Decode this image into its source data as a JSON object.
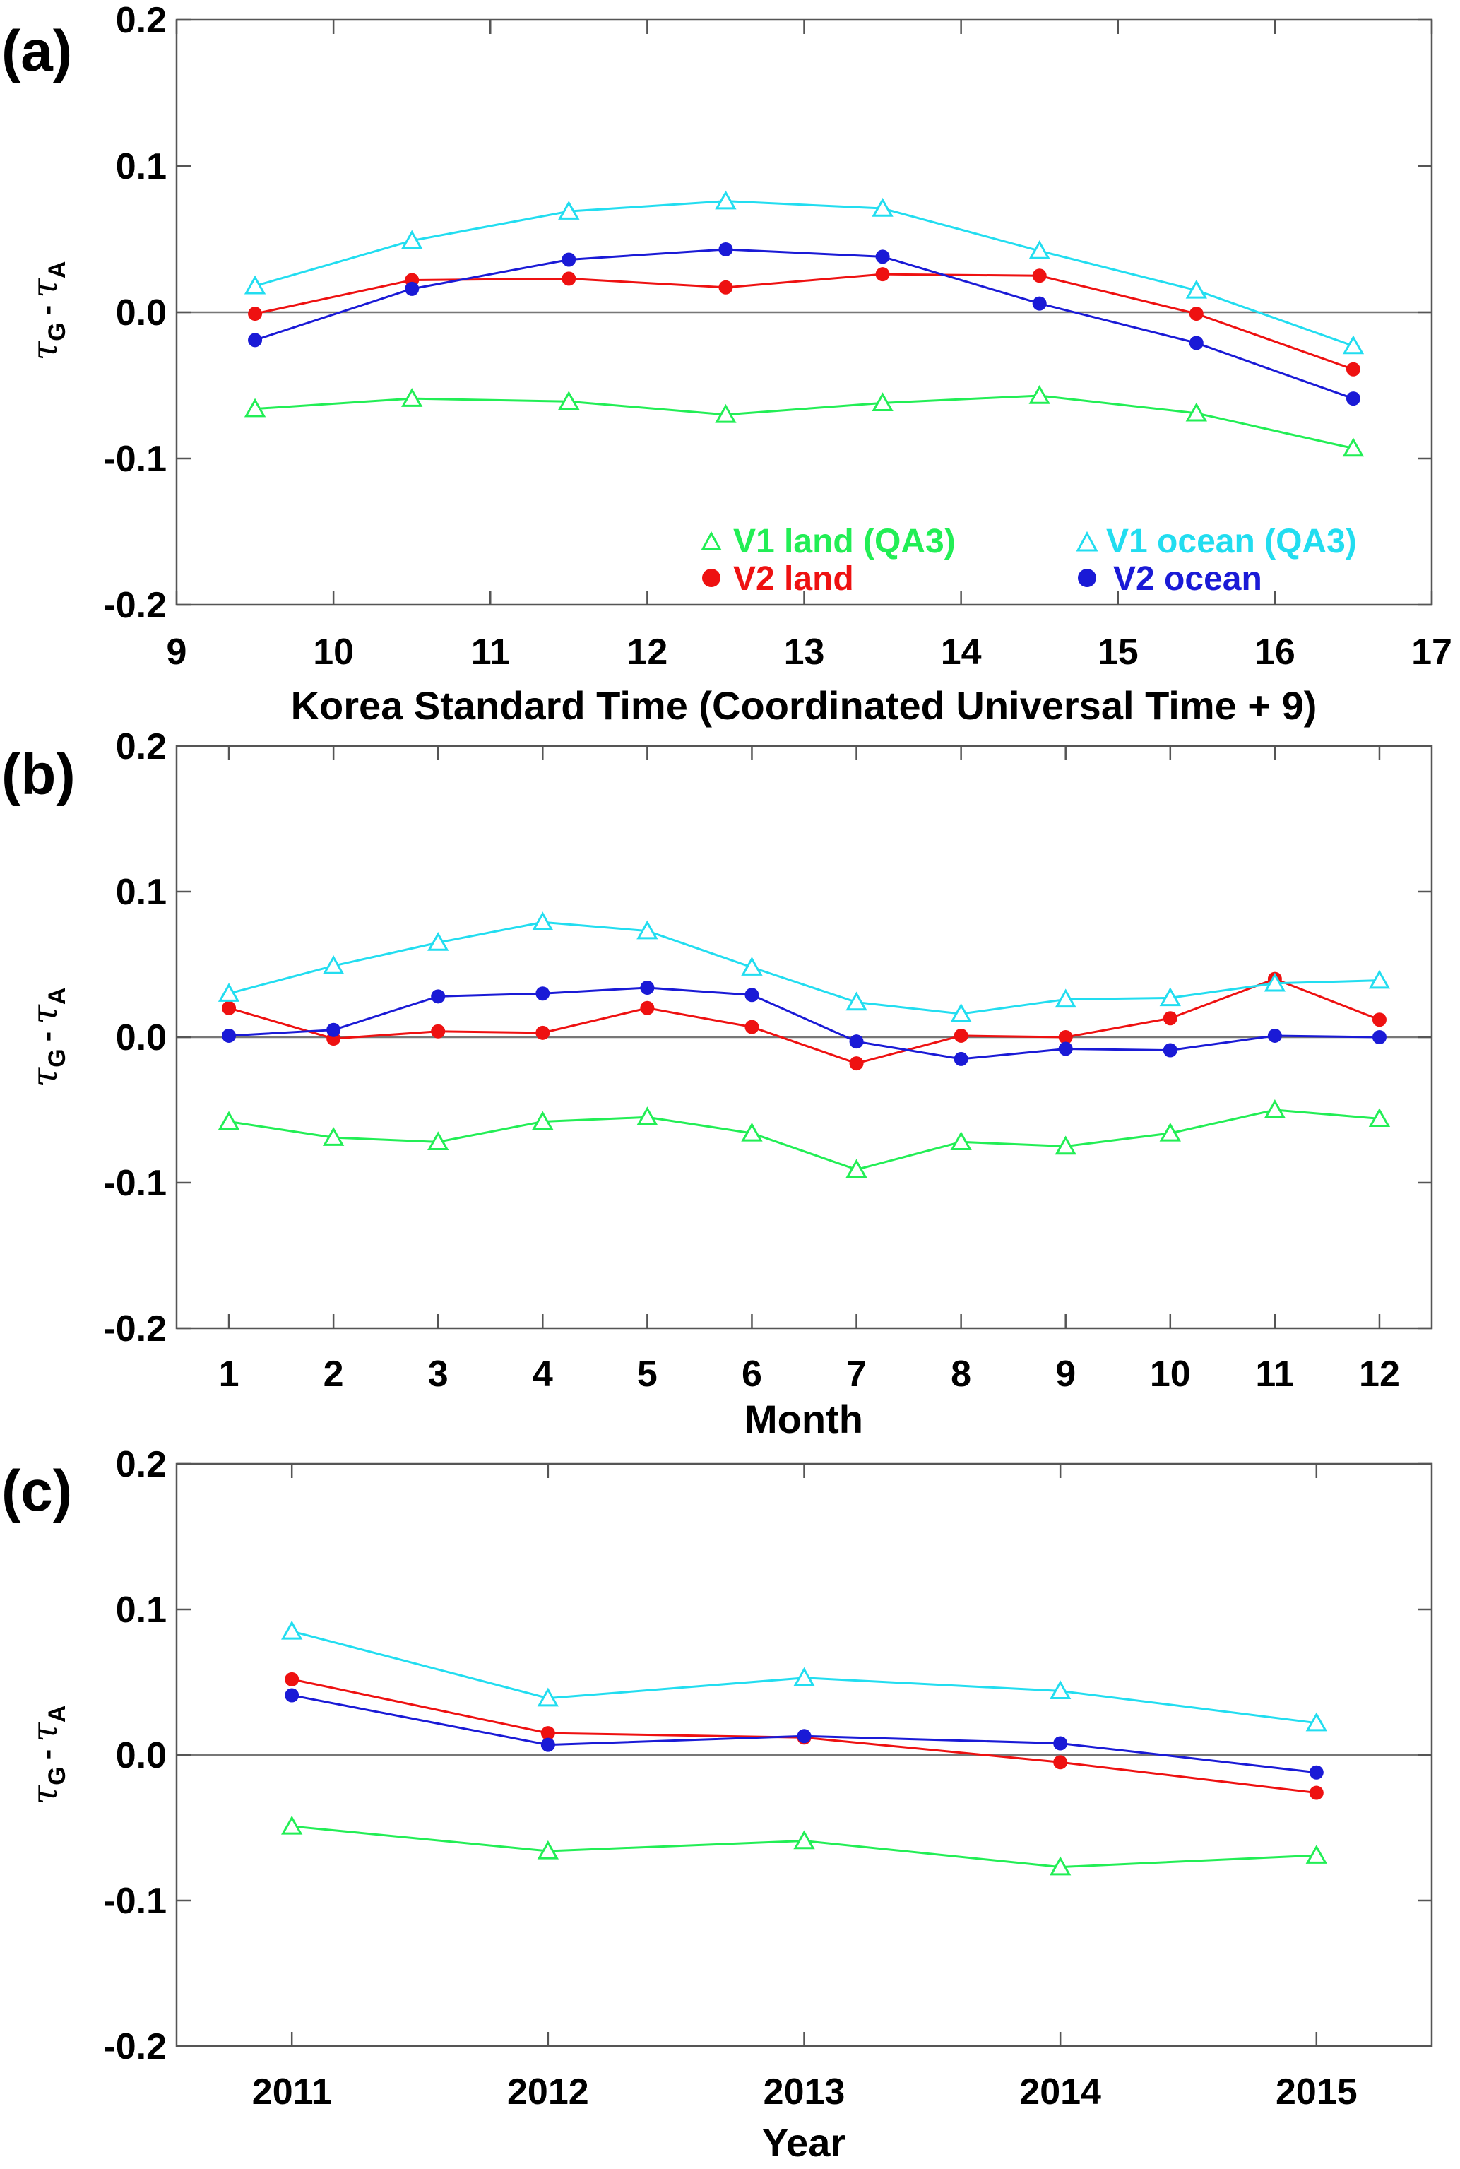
{
  "figure": {
    "colors": {
      "v1_land": "#22ee55",
      "v2_land": "#ee1111",
      "v1_ocean": "#22ddf0",
      "v2_ocean": "#1a1ad6",
      "axis": "#555555",
      "zero_line": "#777777"
    },
    "y_axis_label": {
      "tau": "τ",
      "sub_g": "G",
      "dash": "-",
      "sub_a": "A"
    }
  },
  "legend": {
    "v1_land": {
      "label": "V1 land (QA3)",
      "marker": "open-triangle",
      "color": "#22ee55"
    },
    "v2_land": {
      "label": "V2 land",
      "marker": "filled-circle",
      "color": "#ee1111"
    },
    "v1_ocean": {
      "label": "V1 ocean (QA3)",
      "marker": "open-triangle",
      "color": "#22ddf0"
    },
    "v2_ocean": {
      "label": "V2 ocean",
      "marker": "filled-circle",
      "color": "#1a1ad6"
    }
  },
  "chart_data": [
    {
      "panel": "(a)",
      "type": "line",
      "xlabel": "Korea Standard Time (Coordinated Universal Time + 9)",
      "ylabel": "τG - τA",
      "xlim": [
        9,
        17
      ],
      "ylim": [
        -0.2,
        0.2
      ],
      "xticks": [
        "9",
        "10",
        "11",
        "12",
        "13",
        "14",
        "15",
        "16",
        "17"
      ],
      "yticks": [
        "0.2",
        "0.1",
        "0.0",
        "-0.1",
        "-0.2"
      ],
      "x": [
        9.5,
        10.5,
        11.5,
        12.5,
        13.5,
        14.5,
        15.5,
        16.5
      ],
      "series": [
        {
          "name": "V1 land (QA3)",
          "key": "v1_land",
          "values": [
            -0.066,
            -0.059,
            -0.061,
            -0.07,
            -0.062,
            -0.057,
            -0.069,
            -0.093
          ]
        },
        {
          "name": "V2 land",
          "key": "v2_land",
          "values": [
            -0.001,
            0.022,
            0.023,
            0.017,
            0.026,
            0.025,
            -0.001,
            -0.039
          ]
        },
        {
          "name": "V1 ocean (QA3)",
          "key": "v1_ocean",
          "values": [
            0.018,
            0.049,
            0.069,
            0.076,
            0.071,
            0.042,
            0.015,
            -0.023
          ]
        },
        {
          "name": "V2 ocean",
          "key": "v2_ocean",
          "values": [
            -0.019,
            0.016,
            0.036,
            0.043,
            0.038,
            0.006,
            -0.021,
            -0.059
          ]
        }
      ]
    },
    {
      "panel": "(b)",
      "type": "line",
      "xlabel": "Month",
      "ylabel": "τG - τA",
      "xlim": [
        0.5,
        12.5
      ],
      "ylim": [
        -0.2,
        0.2
      ],
      "xticks": [
        "1",
        "2",
        "3",
        "4",
        "5",
        "6",
        "7",
        "8",
        "9",
        "10",
        "11",
        "12"
      ],
      "yticks": [
        "0.2",
        "0.1",
        "0.0",
        "-0.1",
        "-0.2"
      ],
      "x": [
        1,
        2,
        3,
        4,
        5,
        6,
        7,
        8,
        9,
        10,
        11,
        12
      ],
      "series": [
        {
          "name": "V1 land (QA3)",
          "key": "v1_land",
          "values": [
            -0.058,
            -0.069,
            -0.072,
            -0.058,
            -0.055,
            -0.066,
            -0.091,
            -0.072,
            -0.075,
            -0.066,
            -0.05,
            -0.056
          ]
        },
        {
          "name": "V2 land",
          "key": "v2_land",
          "values": [
            0.02,
            -0.001,
            0.004,
            0.003,
            0.02,
            0.007,
            -0.018,
            0.001,
            0.0,
            0.013,
            0.04,
            0.012
          ]
        },
        {
          "name": "V1 ocean (QA3)",
          "key": "v1_ocean",
          "values": [
            0.03,
            0.049,
            0.065,
            0.079,
            0.073,
            0.048,
            0.024,
            0.016,
            0.026,
            0.027,
            0.037,
            0.039
          ]
        },
        {
          "name": "V2 ocean",
          "key": "v2_ocean",
          "values": [
            0.001,
            0.005,
            0.028,
            0.03,
            0.034,
            0.029,
            -0.003,
            -0.015,
            -0.008,
            -0.009,
            0.001,
            0.0
          ]
        }
      ]
    },
    {
      "panel": "(c)",
      "type": "line",
      "xlabel": "Year",
      "ylabel": "τG - τA",
      "xlim": [
        2010.55,
        2015.45
      ],
      "ylim": [
        -0.2,
        0.2
      ],
      "xticks": [
        "2011",
        "2012",
        "2013",
        "2014",
        "2015"
      ],
      "yticks": [
        "0.2",
        "0.1",
        "0.0",
        "-0.1",
        "-0.2"
      ],
      "x": [
        2011,
        2012,
        2013,
        2014,
        2015
      ],
      "series": [
        {
          "name": "V1 land (QA3)",
          "key": "v1_land",
          "values": [
            -0.049,
            -0.066,
            -0.059,
            -0.077,
            -0.069
          ]
        },
        {
          "name": "V2 land",
          "key": "v2_land",
          "values": [
            0.052,
            0.015,
            0.012,
            -0.005,
            -0.026
          ]
        },
        {
          "name": "V1 ocean (QA3)",
          "key": "v1_ocean",
          "values": [
            0.085,
            0.039,
            0.053,
            0.044,
            0.022
          ]
        },
        {
          "name": "V2 ocean",
          "key": "v2_ocean",
          "values": [
            0.041,
            0.007,
            0.013,
            0.008,
            -0.012
          ]
        }
      ]
    }
  ]
}
